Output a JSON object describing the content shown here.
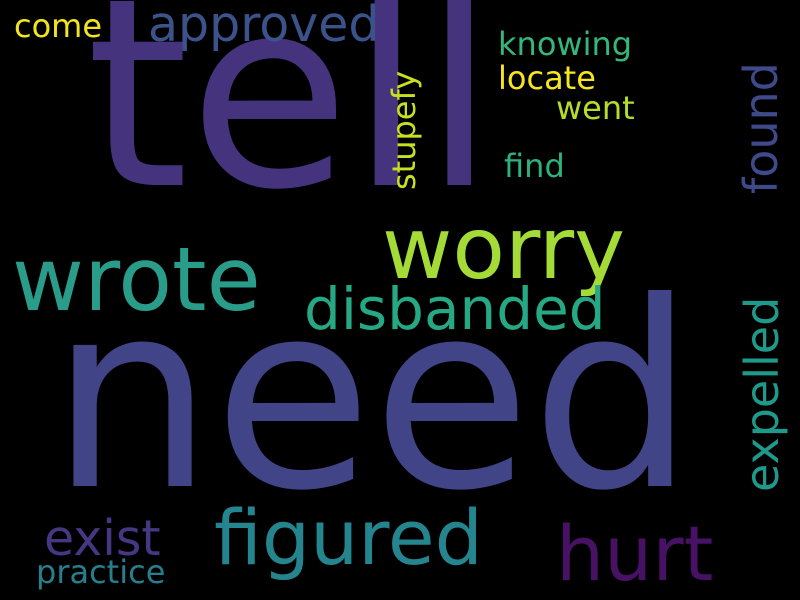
{
  "background": "#000000",
  "words": [
    {
      "key": "tell",
      "text": "tell",
      "color": "#46337e"
    },
    {
      "key": "need",
      "text": "need",
      "color": "#414487"
    },
    {
      "key": "worry",
      "text": "worry",
      "color": "#a5db36"
    },
    {
      "key": "wrote",
      "text": "wrote",
      "color": "#2a9d8a"
    },
    {
      "key": "figured",
      "text": "figured",
      "color": "#25858e"
    },
    {
      "key": "hurt",
      "text": "hurt",
      "color": "#471164"
    },
    {
      "key": "disbanded",
      "text": "disbanded",
      "color": "#26a884"
    },
    {
      "key": "approved",
      "text": "approved",
      "color": "#3b528b"
    },
    {
      "key": "expelled",
      "text": "expelled",
      "color": "#1f9a8a"
    },
    {
      "key": "exist",
      "text": "exist",
      "color": "#453781"
    },
    {
      "key": "found",
      "text": "found",
      "color": "#3e4a89"
    },
    {
      "key": "practice",
      "text": "practice",
      "color": "#277f8e"
    },
    {
      "key": "come",
      "text": "come",
      "color": "#f1e51d"
    },
    {
      "key": "stupefy",
      "text": "stupefy",
      "color": "#c8e020"
    },
    {
      "key": "knowing",
      "text": "knowing",
      "color": "#35b779"
    },
    {
      "key": "locate",
      "text": "locate",
      "color": "#f6e620"
    },
    {
      "key": "went",
      "text": "went",
      "color": "#b5de2b"
    },
    {
      "key": "find",
      "text": "find",
      "color": "#2db27d"
    }
  ]
}
